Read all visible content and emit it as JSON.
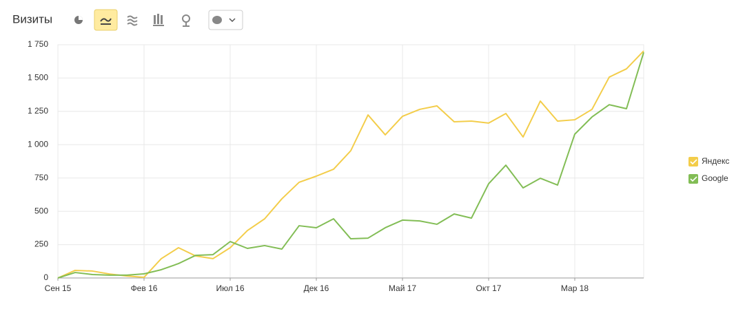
{
  "chart_data": {
    "type": "line",
    "title": "Визиты",
    "categories": [
      "Сен 15",
      null,
      null,
      null,
      null,
      "Фев 16",
      null,
      null,
      null,
      null,
      "Июл 16",
      null,
      null,
      null,
      null,
      "Дек 16",
      null,
      null,
      null,
      null,
      "Май 17",
      null,
      null,
      null,
      null,
      "Окт 17",
      null,
      null,
      null,
      null,
      "Мар 18",
      null,
      null,
      null,
      null
    ],
    "series": [
      {
        "name": "Яндекс",
        "color": "#f3cd4a",
        "values": [
          0,
          57,
          52,
          30,
          15,
          5,
          145,
          227,
          165,
          145,
          227,
          356,
          444,
          594,
          718,
          764,
          816,
          955,
          1223,
          1074,
          1213,
          1265,
          1291,
          1172,
          1177,
          1162,
          1234,
          1058,
          1327,
          1177,
          1187,
          1265,
          1507,
          1569,
          1703
        ]
      },
      {
        "name": "Google",
        "color": "#82bd55",
        "values": [
          0,
          41,
          26,
          21,
          21,
          31,
          62,
          108,
          170,
          175,
          273,
          222,
          243,
          217,
          392,
          377,
          444,
          294,
          299,
          377,
          434,
          428,
          403,
          480,
          449,
          707,
          846,
          676,
          748,
          697,
          1079,
          1208,
          1300,
          1270,
          1693
        ]
      }
    ],
    "ylim": [
      0,
      1750
    ],
    "yticks": [
      0,
      250,
      500,
      750,
      {
        "value": 1000,
        "label": "1 000"
      },
      {
        "value": 1250,
        "label": "1 250"
      },
      {
        "value": 1500,
        "label": "1 500"
      },
      {
        "value": 1750,
        "label": "1 750"
      }
    ],
    "grid": true
  }
}
